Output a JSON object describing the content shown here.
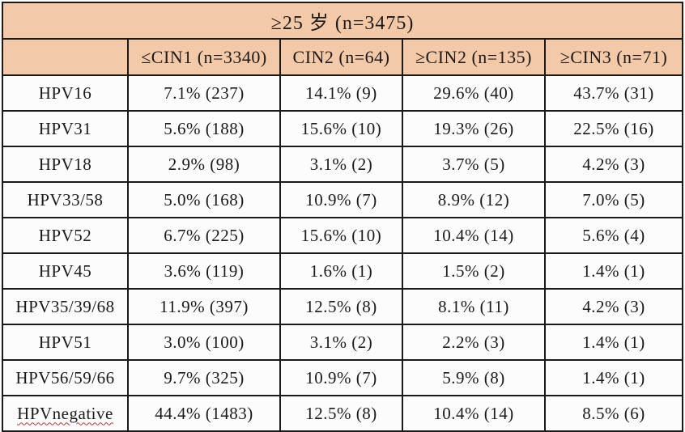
{
  "colors": {
    "header_bg": "#f4c9a8",
    "body_bg": "#fcfcfc",
    "border": "#1a1a1a",
    "spellcheck_underline": "#b23a3a",
    "text": "#1a1a1a"
  },
  "chart_data": {
    "type": "table",
    "title": "≥25 岁 (n=3475)",
    "columns": [
      "≤CIN1 (n=3340)",
      "CIN2 (n=64)",
      "≥CIN2 (n=135)",
      "≥CIN3 (n=71)"
    ],
    "row_label_header": "",
    "rows": [
      {
        "label": "HPV16",
        "values": [
          "7.1% (237)",
          "14.1% (9)",
          "29.6% (40)",
          "43.7% (31)"
        ]
      },
      {
        "label": "HPV31",
        "values": [
          "5.6% (188)",
          "15.6% (10)",
          "19.3% (26)",
          "22.5% (16)"
        ]
      },
      {
        "label": "HPV18",
        "values": [
          "2.9% (98)",
          "3.1% (2)",
          "3.7% (5)",
          "4.2% (3)"
        ]
      },
      {
        "label": "HPV33/58",
        "values": [
          "5.0% (168)",
          "10.9% (7)",
          "8.9% (12)",
          "7.0% (5)"
        ]
      },
      {
        "label": "HPV52",
        "values": [
          "6.7% (225)",
          "15.6% (10)",
          "10.4% (14)",
          "5.6% (4)"
        ]
      },
      {
        "label": "HPV45",
        "values": [
          "3.6% (119)",
          "1.6% (1)",
          "1.5% (2)",
          "1.4% (1)"
        ]
      },
      {
        "label": "HPV35/39/68",
        "values": [
          "11.9% (397)",
          "12.5% (8)",
          "8.1% (11)",
          "4.2% (3)"
        ]
      },
      {
        "label": "HPV51",
        "values": [
          "3.0% (100)",
          "3.1% (2)",
          "2.2% (3)",
          "1.4% (1)"
        ]
      },
      {
        "label": "HPV56/59/66",
        "values": [
          "9.7% (325)",
          "10.9% (7)",
          "5.9% (8)",
          "1.4% (1)"
        ]
      },
      {
        "label": "HPVnegative",
        "values": [
          "44.4% (1483)",
          "12.5% (8)",
          "10.4% (14)",
          "8.5% (6)"
        ],
        "misspell_underline": true
      }
    ]
  }
}
